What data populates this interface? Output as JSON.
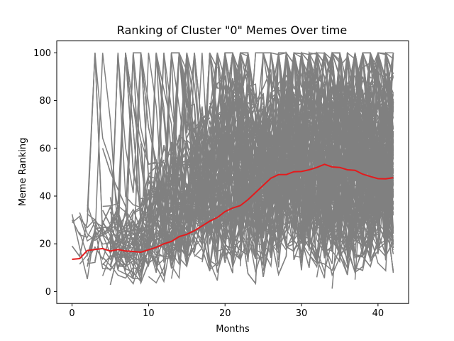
{
  "chart_data": {
    "type": "line",
    "title": "Ranking of Cluster \"0\" Memes Over time",
    "xlabel": "Months",
    "ylabel": "Meme Ranking",
    "xlim": [
      -2,
      44
    ],
    "ylim": [
      -5,
      105
    ],
    "xticks": [
      "0",
      "10",
      "20",
      "30",
      "40"
    ],
    "yticks": [
      "0",
      "20",
      "40",
      "60",
      "80",
      "100"
    ],
    "grid": false,
    "legend": "none",
    "colors": {
      "individual_memes": "#808080",
      "mean": "#e41a1c"
    },
    "x": [
      0,
      1,
      2,
      3,
      4,
      5,
      6,
      7,
      8,
      9,
      10,
      11,
      12,
      13,
      14,
      15,
      16,
      17,
      18,
      19,
      20,
      21,
      22,
      23,
      24,
      25,
      26,
      27,
      28,
      29,
      30,
      31,
      32,
      33,
      34,
      35,
      36,
      37,
      38,
      39,
      40,
      41,
      42
    ],
    "series": [
      {
        "role": "mean",
        "values": [
          13.5,
          13.8,
          17.2,
          17.6,
          18.0,
          17.0,
          17.6,
          17.0,
          16.8,
          16.5,
          17.5,
          18.5,
          20.0,
          21.0,
          23.0,
          24.0,
          25.5,
          27.5,
          29.5,
          31.0,
          33.5,
          35.0,
          36.0,
          38.5,
          41.5,
          44.5,
          47.5,
          49.0,
          49.0,
          50.2,
          50.3,
          51.0,
          52.0,
          53.3,
          52.2,
          52.0,
          51.0,
          50.8,
          49.2,
          48.2,
          47.3,
          47.2,
          47.7
        ]
      }
    ]
  }
}
